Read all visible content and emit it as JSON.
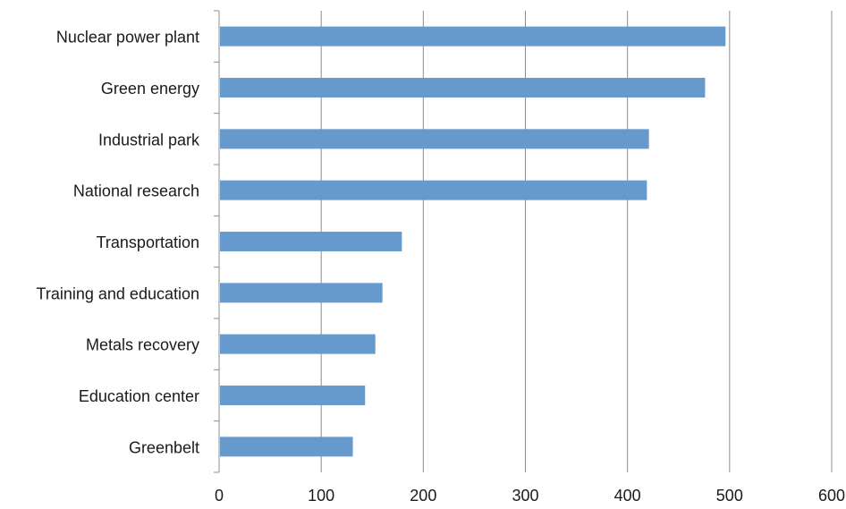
{
  "chart_data": {
    "type": "bar",
    "orientation": "horizontal",
    "categories": [
      "Nuclear power plant",
      "Green energy",
      "Industrial park",
      "National research",
      "Transportation",
      "Training and education",
      "Metals recovery",
      "Education center",
      "Greenbelt"
    ],
    "values": [
      496,
      476,
      421,
      419,
      179,
      160,
      153,
      143,
      131
    ],
    "xlim": [
      0,
      600
    ],
    "xticks": [
      0,
      100,
      200,
      300,
      400,
      500,
      600
    ],
    "grid": "vertical",
    "legend": "none",
    "bar_color": "#6699cc",
    "grid_color": "#8c8c8c"
  }
}
